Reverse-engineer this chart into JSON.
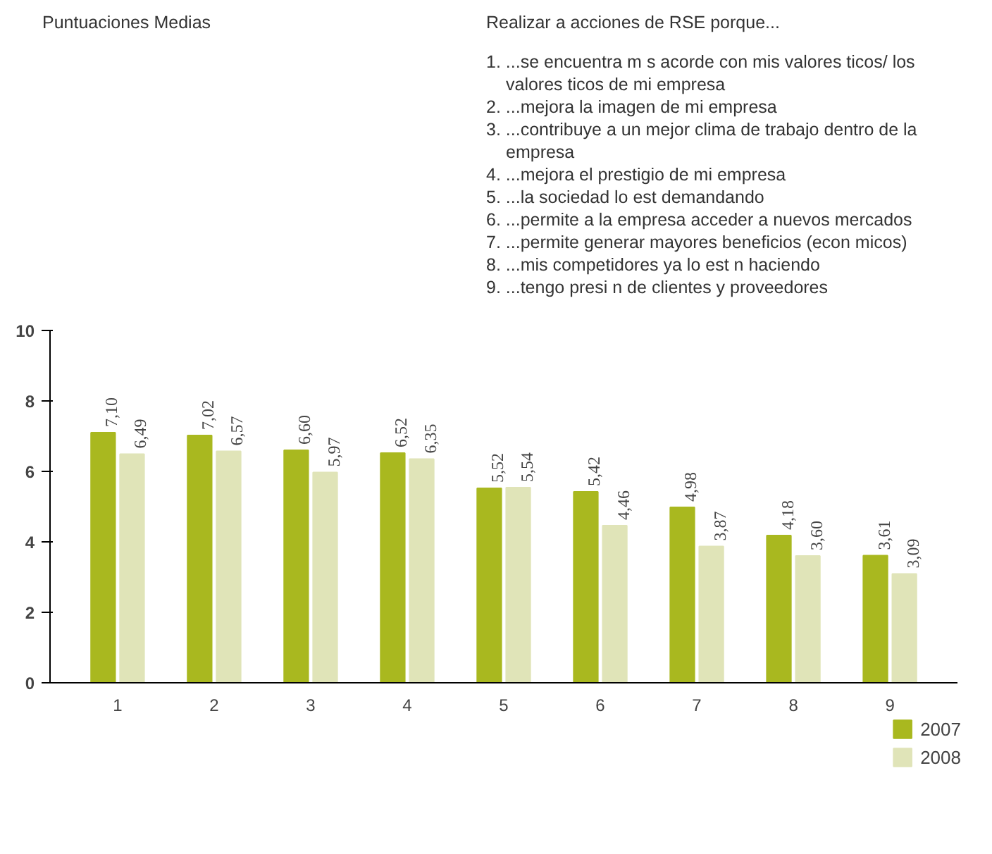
{
  "chart_data": {
    "type": "bar",
    "title": "Puntuaciones Medias",
    "categories": [
      "1",
      "2",
      "3",
      "4",
      "5",
      "6",
      "7",
      "8",
      "9"
    ],
    "series": [
      {
        "name": "2007",
        "color": "#a9b81f",
        "values": [
          7.1,
          7.02,
          6.6,
          6.52,
          5.52,
          5.42,
          4.98,
          4.18,
          3.61
        ],
        "value_labels": [
          "7,10",
          "7,02",
          "6,60",
          "6,52",
          "5,52",
          "5,42",
          "4,98",
          "4,18",
          "3,61"
        ]
      },
      {
        "name": "2008",
        "color": "#e0e4b8",
        "values": [
          6.49,
          6.57,
          5.97,
          6.35,
          5.54,
          4.46,
          3.87,
          3.6,
          3.09
        ],
        "value_labels": [
          "6,49",
          "6,57",
          "5,97",
          "6,35",
          "5,54",
          "4,46",
          "3,87",
          "3,60",
          "3,09"
        ]
      }
    ],
    "ylim": [
      0,
      10
    ],
    "yticks": [
      0,
      2,
      4,
      6,
      8,
      10
    ],
    "legend": "bottom right",
    "annotations": [
      "Realizar a acciones de RSE porque...",
      "1. ...se encuentra m s acorde con mis valores  ticos/ los valores  ticos de mi empresa",
      "2. ...mejora la imagen de mi empresa",
      "3. ...contribuye a un mejor clima de trabajo dentro de la empresa",
      "4. ...mejora el prestigio de mi empresa",
      "5. ...la sociedad lo est  demandando",
      "6. ...permite a la empresa acceder a nuevos mercados",
      "7. ...permite generar mayores beneficios (econ micos)",
      "8. ...mis competidores ya lo est n haciendo",
      "9. ...tengo presi n de clientes y proveedores"
    ]
  }
}
